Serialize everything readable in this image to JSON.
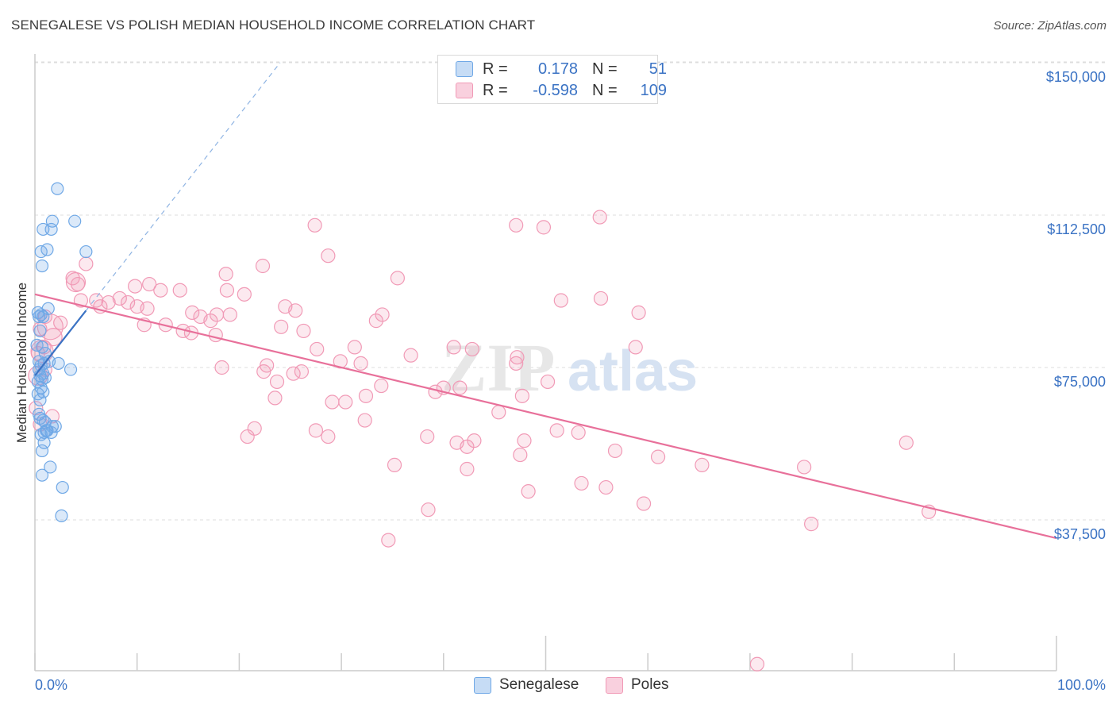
{
  "header": {
    "title": "SENEGALESE VS POLISH MEDIAN HOUSEHOLD INCOME CORRELATION CHART",
    "source": "Source: ZipAtlas.com"
  },
  "watermark": {
    "zip": "ZIP",
    "atlas": "atlas"
  },
  "legend_top": {
    "rows": [
      {
        "r_label": "R =",
        "r_value": "0.178",
        "n_label": "N =",
        "n_value": "51",
        "color": "#6fa8e6"
      },
      {
        "r_label": "R =",
        "r_value": "-0.598",
        "n_label": "N =",
        "n_value": "109",
        "color": "#f19ab6"
      }
    ]
  },
  "legend_bottom": {
    "items": [
      {
        "label": "Senegalese",
        "color": "#6fa8e6"
      },
      {
        "label": "Poles",
        "color": "#f19ab6"
      }
    ]
  },
  "chart_data": {
    "type": "scatter",
    "title": "SENEGALESE VS POLISH MEDIAN HOUSEHOLD INCOME CORRELATION CHART",
    "xlabel": "",
    "ylabel": "Median Household Income",
    "xlim": [
      0,
      100
    ],
    "ylim": [
      0,
      155000
    ],
    "x_tick_labels": [
      "0.0%",
      "100.0%"
    ],
    "y_ticks": [
      37500,
      75000,
      112500,
      150000
    ],
    "y_tick_labels": [
      "$37,500",
      "$75,000",
      "$112,500",
      "$150,000"
    ],
    "grid": true,
    "legend_position": "top-center",
    "series": [
      {
        "name": "Senegalese",
        "color": "#6fa8e6",
        "r": 0.178,
        "n": 51,
        "trend": {
          "x": [
            0,
            5
          ],
          "y": [
            73000,
            89000
          ],
          "extended_to": [
            24,
            150000
          ]
        },
        "points": [
          [
            2.2,
            119000
          ],
          [
            1.7,
            111000
          ],
          [
            3.9,
            111000
          ],
          [
            1.6,
            109000
          ],
          [
            0.8,
            109000
          ],
          [
            1.2,
            104000
          ],
          [
            5.0,
            103500
          ],
          [
            0.6,
            103500
          ],
          [
            0.7,
            100000
          ],
          [
            1.3,
            89500
          ],
          [
            0.6,
            88000
          ],
          [
            0.4,
            87500
          ],
          [
            0.8,
            87500
          ],
          [
            0.3,
            88500
          ],
          [
            0.5,
            84000
          ],
          [
            0.2,
            80500
          ],
          [
            0.7,
            80000
          ],
          [
            1.0,
            78500
          ],
          [
            2.3,
            76000
          ],
          [
            0.4,
            76500
          ],
          [
            0.9,
            76000
          ],
          [
            1.4,
            76500
          ],
          [
            0.6,
            75500
          ],
          [
            0.4,
            74500
          ],
          [
            0.8,
            73500
          ],
          [
            3.5,
            74500
          ],
          [
            0.5,
            73000
          ],
          [
            1.0,
            72500
          ],
          [
            0.7,
            72000
          ],
          [
            0.3,
            71500
          ],
          [
            0.6,
            70000
          ],
          [
            0.8,
            69000
          ],
          [
            0.3,
            68500
          ],
          [
            0.5,
            67000
          ],
          [
            0.4,
            63500
          ],
          [
            0.8,
            62000
          ],
          [
            1.0,
            61500
          ],
          [
            1.7,
            60500
          ],
          [
            2.0,
            60500
          ],
          [
            1.2,
            59500
          ],
          [
            0.6,
            58500
          ],
          [
            0.9,
            59000
          ],
          [
            0.7,
            54500
          ],
          [
            1.5,
            50500
          ],
          [
            0.7,
            48500
          ],
          [
            2.7,
            45500
          ],
          [
            2.6,
            38500
          ],
          [
            1.1,
            59500
          ],
          [
            0.5,
            62500
          ],
          [
            1.6,
            59000
          ],
          [
            0.9,
            56500
          ]
        ]
      },
      {
        "name": "Poles",
        "color": "#f19ab6",
        "r": -0.598,
        "n": 109,
        "trend": {
          "x": [
            0,
            100
          ],
          "y": [
            93000,
            33000
          ]
        },
        "points": [
          [
            49.8,
            109500
          ],
          [
            47.1,
            110000
          ],
          [
            55.3,
            112000
          ],
          [
            27.4,
            110000
          ],
          [
            28.7,
            102500
          ],
          [
            22.3,
            100000
          ],
          [
            18.7,
            98000
          ],
          [
            35.5,
            97000
          ],
          [
            5.0,
            100500
          ],
          [
            3.7,
            97000
          ],
          [
            4.2,
            95500
          ],
          [
            9.8,
            95000
          ],
          [
            11.2,
            95500
          ],
          [
            12.3,
            94000
          ],
          [
            14.2,
            94000
          ],
          [
            18.8,
            94000
          ],
          [
            20.5,
            93000
          ],
          [
            51.5,
            91500
          ],
          [
            55.4,
            92000
          ],
          [
            4.5,
            91500
          ],
          [
            6.0,
            91500
          ],
          [
            7.2,
            91000
          ],
          [
            8.3,
            92000
          ],
          [
            9.1,
            91000
          ],
          [
            10.0,
            90000
          ],
          [
            11.0,
            89500
          ],
          [
            6.4,
            90000
          ],
          [
            24.5,
            90000
          ],
          [
            25.5,
            89000
          ],
          [
            59.1,
            88500
          ],
          [
            15.4,
            88500
          ],
          [
            17.8,
            88000
          ],
          [
            16.2,
            87500
          ],
          [
            17.2,
            86500
          ],
          [
            19.1,
            88000
          ],
          [
            34.0,
            88000
          ],
          [
            33.4,
            86500
          ],
          [
            1.0,
            87500
          ],
          [
            2.5,
            86000
          ],
          [
            0.5,
            84500
          ],
          [
            10.7,
            85500
          ],
          [
            12.8,
            85500
          ],
          [
            14.5,
            84000
          ],
          [
            15.3,
            83500
          ],
          [
            17.7,
            83000
          ],
          [
            24.1,
            85000
          ],
          [
            26.3,
            84000
          ],
          [
            0.9,
            80000
          ],
          [
            0.3,
            78500
          ],
          [
            31.3,
            80000
          ],
          [
            27.6,
            79500
          ],
          [
            41.0,
            80000
          ],
          [
            42.8,
            79500
          ],
          [
            58.8,
            80000
          ],
          [
            47.2,
            77500
          ],
          [
            36.8,
            78000
          ],
          [
            29.9,
            76500
          ],
          [
            31.9,
            76000
          ],
          [
            47.1,
            76000
          ],
          [
            18.3,
            75000
          ],
          [
            22.7,
            75500
          ],
          [
            22.4,
            74000
          ],
          [
            25.3,
            73500
          ],
          [
            26.1,
            74000
          ],
          [
            1.0,
            74500
          ],
          [
            23.7,
            71500
          ],
          [
            33.9,
            70500
          ],
          [
            50.2,
            71500
          ],
          [
            40.0,
            70000
          ],
          [
            39.2,
            69000
          ],
          [
            41.6,
            70000
          ],
          [
            23.5,
            67500
          ],
          [
            32.4,
            68000
          ],
          [
            47.7,
            68000
          ],
          [
            29.1,
            66500
          ],
          [
            30.4,
            66500
          ],
          [
            1.7,
            63000
          ],
          [
            0.1,
            65000
          ],
          [
            45.4,
            64000
          ],
          [
            32.3,
            62000
          ],
          [
            21.5,
            60000
          ],
          [
            20.8,
            58000
          ],
          [
            27.5,
            59500
          ],
          [
            28.7,
            58000
          ],
          [
            38.4,
            58000
          ],
          [
            41.3,
            56500
          ],
          [
            42.3,
            55500
          ],
          [
            43.0,
            57000
          ],
          [
            51.1,
            59500
          ],
          [
            53.2,
            59000
          ],
          [
            85.3,
            56500
          ],
          [
            47.5,
            53500
          ],
          [
            56.8,
            54500
          ],
          [
            61.0,
            53000
          ],
          [
            35.2,
            51000
          ],
          [
            42.3,
            50000
          ],
          [
            65.3,
            51000
          ],
          [
            75.3,
            50500
          ],
          [
            53.5,
            46500
          ],
          [
            55.9,
            45500
          ],
          [
            48.3,
            44500
          ],
          [
            59.6,
            41500
          ],
          [
            38.5,
            40000
          ],
          [
            76.0,
            36500
          ],
          [
            87.5,
            39500
          ],
          [
            34.6,
            32500
          ],
          [
            47.9,
            57000
          ],
          [
            70.7,
            2000
          ],
          [
            0.5,
            61000
          ]
        ]
      }
    ]
  }
}
